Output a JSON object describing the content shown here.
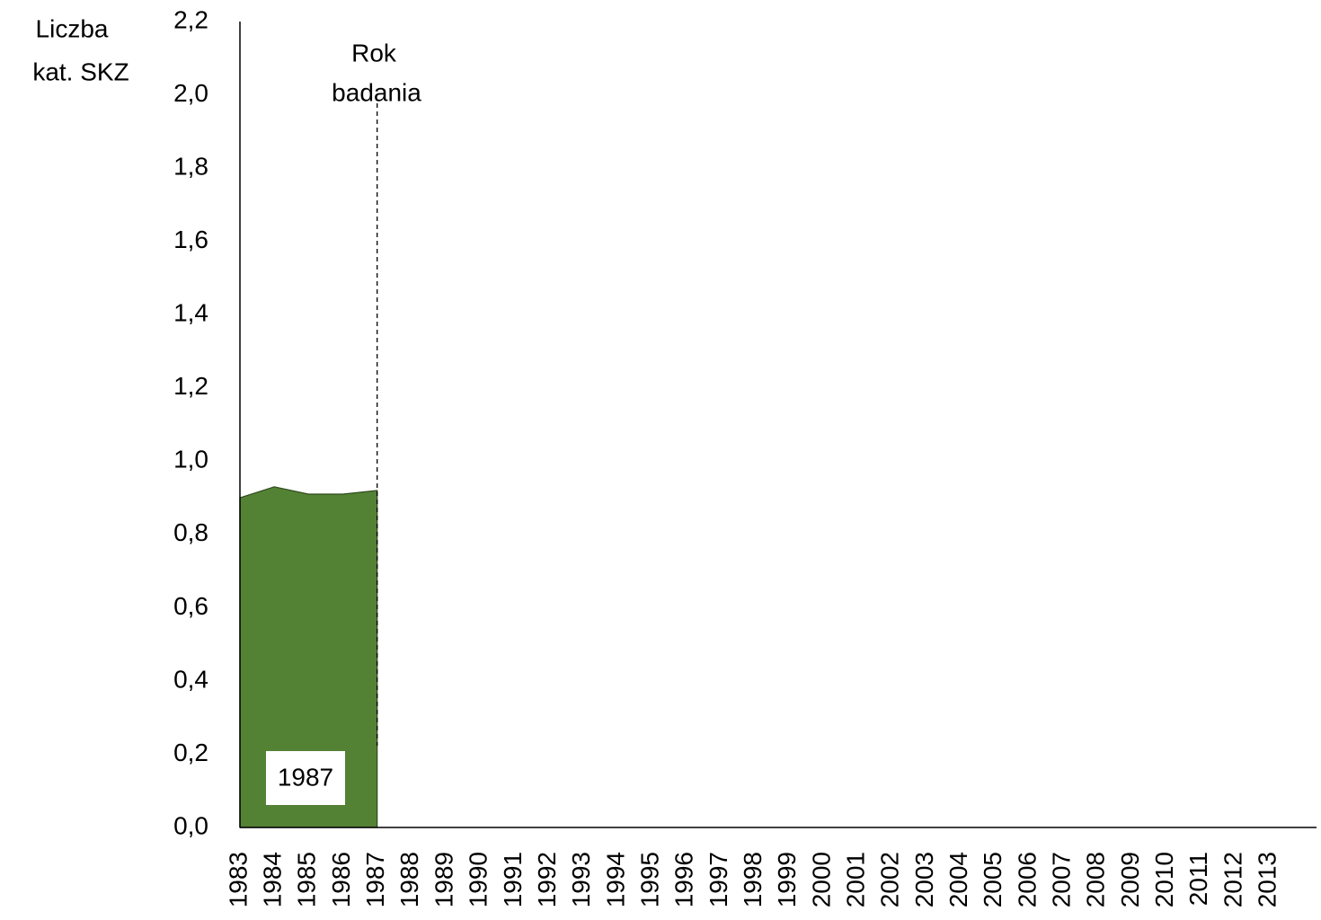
{
  "chart_data": {
    "type": "area",
    "y_label": [
      "Liczba",
      "kat. SKZ"
    ],
    "annotation": [
      "Rok",
      "badania"
    ],
    "marker_label": "1987",
    "categories": [
      "1983",
      "1984",
      "1985",
      "1986",
      "1987",
      "1988",
      "1989",
      "1990",
      "1991",
      "1992",
      "1993",
      "1994",
      "1995",
      "1996",
      "1997",
      "1998",
      "1999",
      "2000",
      "2001",
      "2002",
      "2003",
      "2004",
      "2005",
      "2006",
      "2007",
      "2008",
      "2009",
      "2010",
      "2011",
      "2012",
      "2013"
    ],
    "values": [
      0.9,
      0.93,
      0.91,
      0.91,
      0.92,
      null,
      null,
      null,
      null,
      null,
      null,
      null,
      null,
      null,
      null,
      null,
      null,
      null,
      null,
      null,
      null,
      null,
      null,
      null,
      null,
      null,
      null,
      null,
      null,
      null,
      null
    ],
    "color": "#548235",
    "ylim": [
      0,
      2.2
    ],
    "yticks": [
      {
        "value": 0,
        "label": "0,0"
      },
      {
        "value": 0.2,
        "label": "0,2"
      },
      {
        "value": 0.4,
        "label": "0,4"
      },
      {
        "value": 0.6,
        "label": "0,6"
      },
      {
        "value": 0.8,
        "label": "0,8"
      },
      {
        "value": 1,
        "label": "1,0"
      },
      {
        "value": 1.2,
        "label": "1,2"
      },
      {
        "value": 1.4,
        "label": "1,4"
      },
      {
        "value": 1.6,
        "label": "1,6"
      },
      {
        "value": 1.8,
        "label": "1,8"
      },
      {
        "value": 2,
        "label": "2,0"
      },
      {
        "value": 2.2,
        "label": "2,2"
      }
    ]
  }
}
